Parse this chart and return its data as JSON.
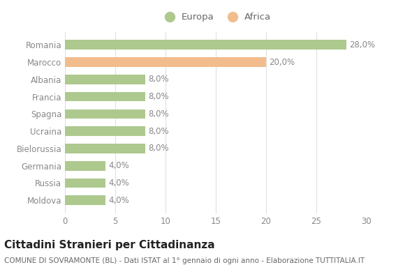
{
  "categories": [
    "Romania",
    "Marocco",
    "Albania",
    "Francia",
    "Spagna",
    "Ucraina",
    "Bielorussia",
    "Germania",
    "Russia",
    "Moldova"
  ],
  "values": [
    28.0,
    20.0,
    8.0,
    8.0,
    8.0,
    8.0,
    8.0,
    4.0,
    4.0,
    4.0
  ],
  "colors": [
    "#aec98d",
    "#f2bc8c",
    "#aec98d",
    "#aec98d",
    "#aec98d",
    "#aec98d",
    "#aec98d",
    "#aec98d",
    "#aec98d",
    "#aec98d"
  ],
  "labels": [
    "28,0%",
    "20,0%",
    "8,0%",
    "8,0%",
    "8,0%",
    "8,0%",
    "8,0%",
    "4,0%",
    "4,0%",
    "4,0%"
  ],
  "legend_europa_color": "#aec98d",
  "legend_africa_color": "#f2bc8c",
  "xlim": [
    0,
    30
  ],
  "xticks": [
    0,
    5,
    10,
    15,
    20,
    25,
    30
  ],
  "title": "Cittadini Stranieri per Cittadinanza",
  "subtitle": "COMUNE DI SOVRAMONTE (BL) - Dati ISTAT al 1° gennaio di ogni anno - Elaborazione TUTTITALIA.IT",
  "background_color": "#ffffff",
  "bar_height": 0.55,
  "grid_color": "#e0e0e0",
  "label_fontsize": 8.5,
  "tick_fontsize": 8.5,
  "title_fontsize": 11,
  "subtitle_fontsize": 7.5,
  "label_color": "#888888",
  "tick_color": "#888888"
}
